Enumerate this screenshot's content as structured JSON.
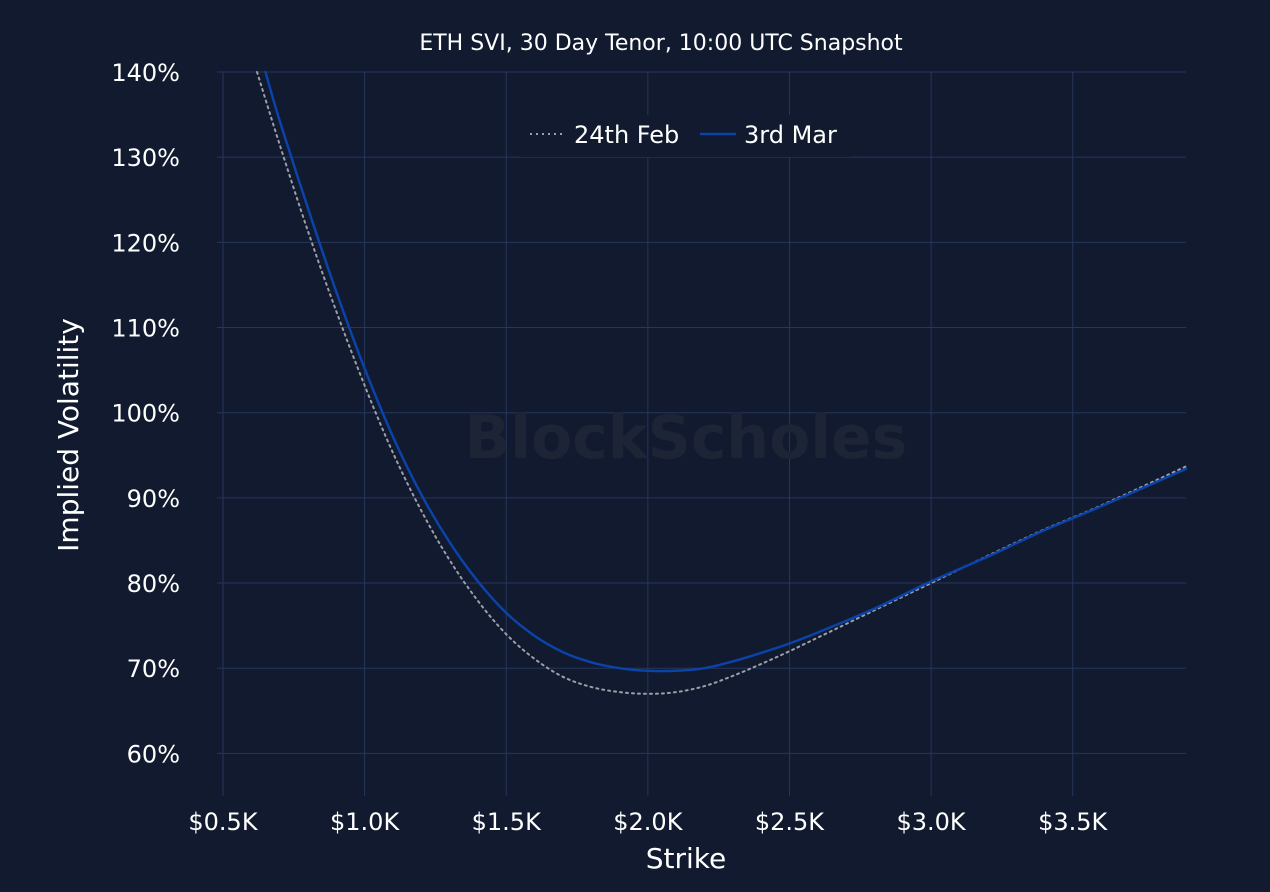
{
  "colors": {
    "background": "#111a2e",
    "grid": "#26365c",
    "text": "#ffffff",
    "series_feb": "#9a9fa8",
    "series_mar": "#0b43a8",
    "watermark": "#1d2436"
  },
  "watermark": "BlockScholes",
  "chart_data": {
    "type": "line",
    "title": "ETH SVI, 30 Day Tenor, 10:00 UTC Snapshot",
    "xlabel": "Strike",
    "ylabel": "Implied Volatility",
    "xlim": [
      380,
      3900
    ],
    "ylim": [
      55,
      140
    ],
    "x_ticks": [
      500,
      1000,
      1500,
      2000,
      2500,
      3000,
      3500
    ],
    "x_tick_labels": [
      "$0.5K",
      "$1.0K",
      "$1.5K",
      "$2.0K",
      "$2.5K",
      "$3.0K",
      "$3.5K"
    ],
    "y_ticks": [
      60,
      70,
      80,
      90,
      100,
      110,
      120,
      130,
      140
    ],
    "y_tick_labels": [
      "60%",
      "70%",
      "80%",
      "90%",
      "100%",
      "110%",
      "120%",
      "130%",
      "140%"
    ],
    "grid": true,
    "legend_position": "top-center",
    "series": [
      {
        "name": "24th Feb",
        "style": "dotted",
        "x": [
          620,
          700,
          800,
          900,
          1000,
          1100,
          1200,
          1300,
          1400,
          1500,
          1600,
          1700,
          1800,
          1900,
          2000,
          2100,
          2200,
          2300,
          2400,
          2500,
          2600,
          2800,
          3000,
          3200,
          3400,
          3600,
          3900
        ],
        "y": [
          140,
          131.5,
          121.3,
          111.9,
          103.2,
          95.3,
          88.5,
          82.7,
          77.9,
          74.0,
          71.1,
          69.0,
          67.8,
          67.2,
          67.0,
          67.2,
          67.9,
          69.1,
          70.5,
          72.0,
          73.6,
          76.8,
          80.0,
          83.2,
          86.3,
          89.1,
          93.7
        ]
      },
      {
        "name": "3rd Mar",
        "style": "solid",
        "x": [
          650,
          700,
          800,
          900,
          1000,
          1100,
          1200,
          1300,
          1400,
          1500,
          1600,
          1700,
          1800,
          1900,
          2000,
          2100,
          2200,
          2300,
          2400,
          2500,
          2600,
          2800,
          3000,
          3200,
          3400,
          3600,
          3900
        ],
        "y": [
          140,
          134.3,
          124.0,
          114.2,
          105.2,
          97.2,
          90.4,
          84.8,
          80.2,
          76.5,
          73.8,
          71.9,
          70.7,
          70.0,
          69.7,
          69.7,
          70.0,
          70.8,
          71.8,
          72.9,
          74.2,
          77.0,
          80.2,
          83.1,
          86.2,
          89.0,
          93.4
        ]
      }
    ]
  }
}
